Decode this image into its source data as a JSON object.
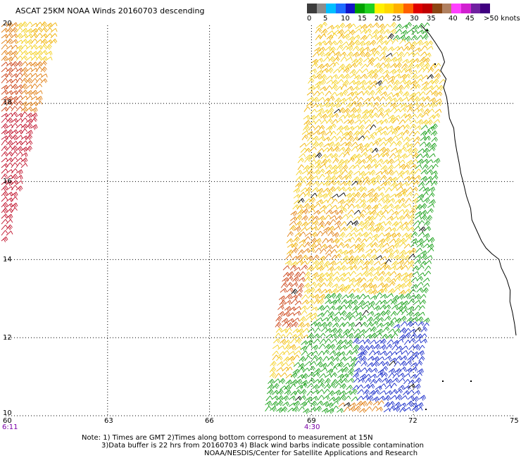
{
  "title": "ASCAT 25KM NOAA Winds 20160703 descending",
  "legend": {
    "colors": [
      "#3c3c3c",
      "#8c8c8c",
      "#00bfff",
      "#1f6cff",
      "#1414c8",
      "#00a000",
      "#20d020",
      "#fff000",
      "#ffd700",
      "#ffb000",
      "#ff6000",
      "#e00000",
      "#c00000",
      "#8b4513",
      "#b08060",
      "#ff40ff",
      "#d020d0",
      "#7020a0",
      "#400080"
    ],
    "labels": [
      "0",
      "5",
      "10",
      "15",
      "20",
      "25",
      "30",
      "35",
      "40",
      "45",
      ">50 knots"
    ]
  },
  "lat_labels": [
    "20",
    "18",
    "16",
    "14",
    "12",
    "10"
  ],
  "lon_labels": [
    "60",
    "63",
    "66",
    "69",
    "72",
    "75"
  ],
  "times": {
    "left": "6:11",
    "right": "4:30"
  },
  "notes": [
    "Note:  1) Times are GMT  2)Times along bottom correspond to measurement at 15N",
    "3)Data buffer is 22 hrs from 20160703  4) Black wind barbs indicate possible contamination",
    "NOAA/NESDIS/Center for Satellite Applications and Research"
  ],
  "wind_colors": {
    "dark_red": "#c0102a",
    "red_brown": "#cc4418",
    "orange": "#e07d10",
    "gold": "#f0b000",
    "yellow": "#f4d020",
    "green": "#18a018",
    "blue": "#1428c8",
    "contaminated": "#000000"
  }
}
